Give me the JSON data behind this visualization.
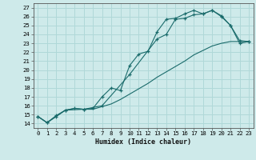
{
  "xlabel": "Humidex (Indice chaleur)",
  "bg_color": "#ceeaea",
  "grid_color": "#b0d8d8",
  "line_color": "#1a6b6b",
  "xlim": [
    -0.5,
    23.5
  ],
  "ylim": [
    13.5,
    27.5
  ],
  "xticks": [
    0,
    1,
    2,
    3,
    4,
    5,
    6,
    7,
    8,
    9,
    10,
    11,
    12,
    13,
    14,
    15,
    16,
    17,
    18,
    19,
    20,
    21,
    22,
    23
  ],
  "yticks": [
    14,
    15,
    16,
    17,
    18,
    19,
    20,
    21,
    22,
    23,
    24,
    25,
    26,
    27
  ],
  "curve1_x": [
    0,
    1,
    2,
    3,
    4,
    5,
    6,
    7,
    8,
    9,
    10,
    11,
    12,
    13,
    14,
    15,
    16,
    17,
    18,
    19,
    20,
    21,
    22,
    23
  ],
  "curve1_y": [
    14.8,
    14.1,
    14.8,
    15.5,
    15.7,
    15.6,
    15.6,
    15.9,
    16.2,
    16.7,
    17.3,
    17.9,
    18.5,
    19.2,
    19.8,
    20.4,
    21.0,
    21.7,
    22.2,
    22.7,
    23.0,
    23.2,
    23.2,
    23.2
  ],
  "curve2_x": [
    0,
    1,
    2,
    3,
    4,
    5,
    6,
    7,
    8,
    9,
    10,
    11,
    12,
    13,
    14,
    15,
    16,
    17,
    18,
    19,
    20,
    21,
    22,
    23
  ],
  "curve2_y": [
    14.8,
    14.1,
    14.9,
    15.5,
    15.7,
    15.6,
    15.7,
    17.0,
    18.0,
    17.7,
    20.5,
    21.8,
    22.1,
    24.3,
    25.7,
    25.8,
    26.3,
    26.7,
    26.3,
    26.7,
    26.1,
    25.0,
    23.3,
    23.2
  ],
  "curve3_x": [
    0,
    1,
    2,
    3,
    5,
    7,
    10,
    13,
    14,
    15,
    16,
    17,
    18,
    19,
    20,
    21,
    22,
    23
  ],
  "curve3_y": [
    14.8,
    14.1,
    14.8,
    15.5,
    15.6,
    16.0,
    19.5,
    23.5,
    24.0,
    25.7,
    25.8,
    26.2,
    26.3,
    26.7,
    26.0,
    25.0,
    23.0,
    23.2
  ]
}
